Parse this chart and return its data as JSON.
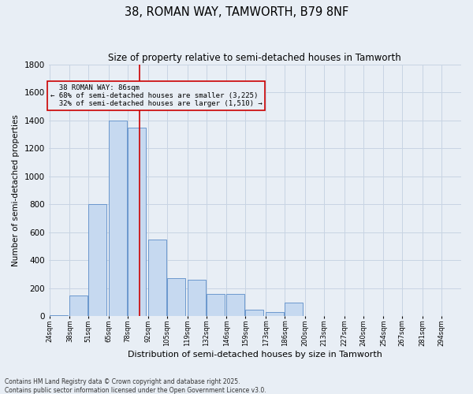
{
  "title1": "38, ROMAN WAY, TAMWORTH, B79 8NF",
  "title2": "Size of property relative to semi-detached houses in Tamworth",
  "xlabel": "Distribution of semi-detached houses by size in Tamworth",
  "ylabel": "Number of semi-detached properties",
  "property_size": 86,
  "property_label": "38 ROMAN WAY: 86sqm",
  "pct_smaller": 68,
  "count_smaller": 3225,
  "pct_larger": 32,
  "count_larger": 1510,
  "bins": [
    24,
    38,
    51,
    65,
    78,
    92,
    105,
    119,
    132,
    146,
    159,
    173,
    186,
    200,
    213,
    227,
    240,
    254,
    267,
    281,
    294
  ],
  "bin_labels": [
    "24sqm",
    "38sqm",
    "51sqm",
    "65sqm",
    "78sqm",
    "92sqm",
    "105sqm",
    "119sqm",
    "132sqm",
    "146sqm",
    "159sqm",
    "173sqm",
    "186sqm",
    "200sqm",
    "213sqm",
    "227sqm",
    "240sqm",
    "254sqm",
    "267sqm",
    "281sqm",
    "294sqm"
  ],
  "bar_heights": [
    10,
    150,
    800,
    1400,
    1350,
    550,
    270,
    260,
    160,
    160,
    50,
    30,
    100,
    0,
    0,
    0,
    5,
    0,
    0,
    0,
    5
  ],
  "bar_color": "#c6d9f0",
  "bar_edge_color": "#5b8cc8",
  "grid_color": "#c8d4e3",
  "bg_color": "#e8eef5",
  "annotation_box_color": "#cc0000",
  "vline_color": "#cc0000",
  "ylim": [
    0,
    1800
  ],
  "yticks": [
    0,
    200,
    400,
    600,
    800,
    1000,
    1200,
    1400,
    1600,
    1800
  ],
  "footnote1": "Contains HM Land Registry data © Crown copyright and database right 2025.",
  "footnote2": "Contains public sector information licensed under the Open Government Licence v3.0."
}
